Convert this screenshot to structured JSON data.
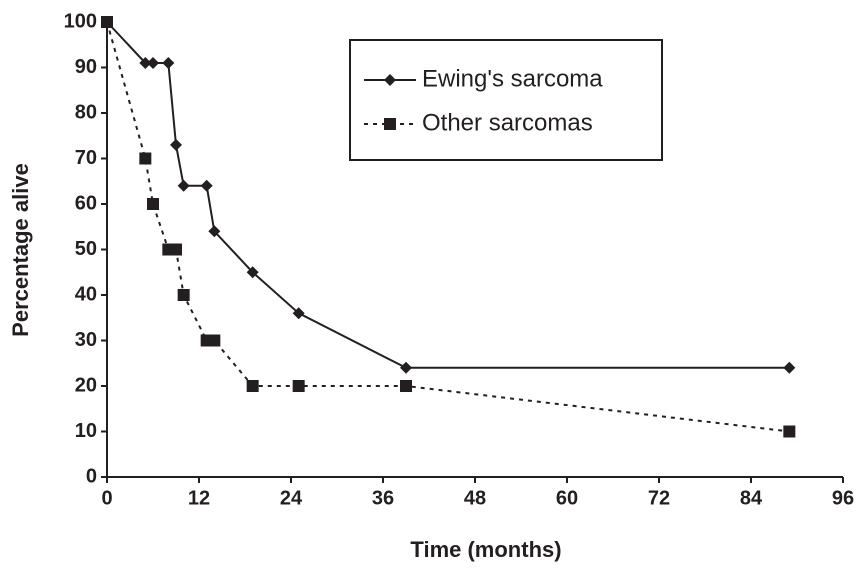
{
  "chart_data": {
    "type": "line",
    "xlabel": "Time (months)",
    "ylabel": "Percentage alive",
    "xlim": [
      0,
      96
    ],
    "xticks": [
      0,
      12,
      24,
      36,
      48,
      60,
      72,
      84,
      96
    ],
    "ylim": [
      0,
      100
    ],
    "yticks": [
      0,
      10,
      20,
      30,
      40,
      50,
      60,
      70,
      80,
      90,
      100
    ],
    "grid": false,
    "legend": "upper right",
    "series": [
      {
        "name": "Ewing's sarcoma",
        "color": "#231f20",
        "marker": "diamond",
        "linestyle": "solid",
        "x": [
          0,
          5,
          6,
          8,
          9,
          10,
          13,
          14,
          19,
          25,
          39,
          89
        ],
        "values": [
          100,
          91,
          91,
          91,
          73,
          64,
          64,
          54,
          45,
          36,
          24,
          24
        ]
      },
      {
        "name": "Other sarcomas",
        "color": "#231f20",
        "marker": "square",
        "linestyle": "dotted",
        "x": [
          0,
          5,
          6,
          8,
          9,
          10,
          13,
          14,
          19,
          25,
          39,
          89
        ],
        "values": [
          100,
          70,
          60,
          50,
          50,
          40,
          30,
          30,
          20,
          20,
          20,
          10
        ]
      }
    ]
  }
}
